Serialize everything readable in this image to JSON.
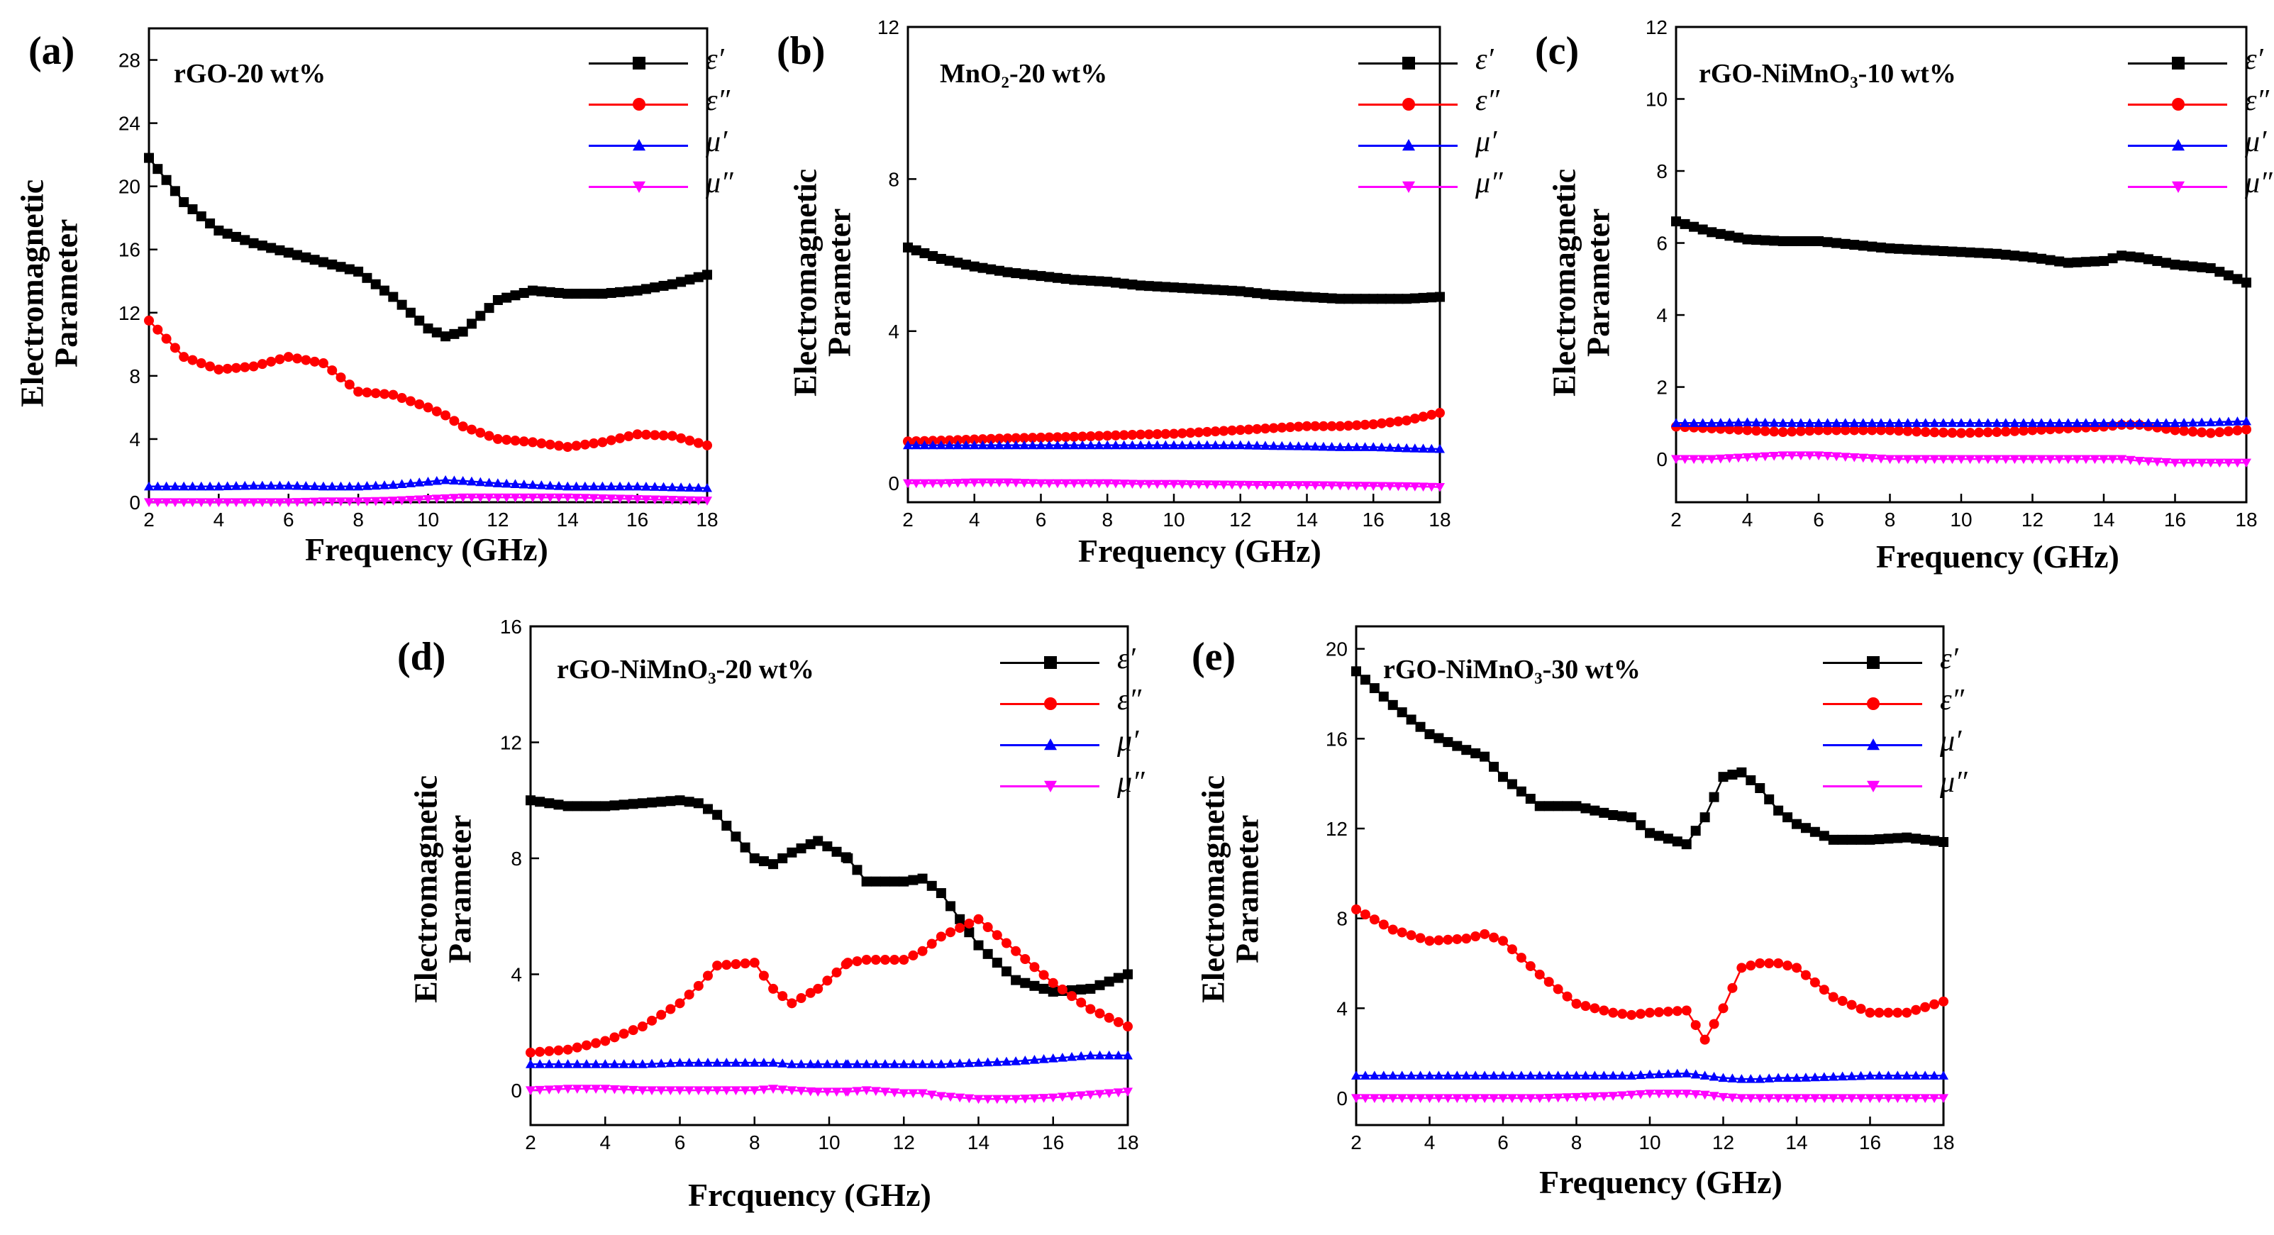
{
  "figure": {
    "x_axis_label": "Frequency (GHz)",
    "x_axis_label_d": "Frcquency (GHz)",
    "y_axis_label_line1": "Electromagnetic",
    "y_axis_label_line2": "Parameter"
  },
  "legend_labels": [
    "ε′",
    "ε″",
    "μ′",
    "μ″"
  ],
  "series_colors": {
    "eps_real": "#000000",
    "eps_imag": "#ff0000",
    "mu_real": "#0000ff",
    "mu_imag": "#ff00ff"
  },
  "panels": [
    {
      "label": "(a)",
      "title": "rGO-20 wt%"
    },
    {
      "label": "(b)",
      "title": "MnO₂-20 wt%"
    },
    {
      "label": "(c)",
      "title": "rGO-NiMnO₃-10 wt%"
    },
    {
      "label": "(d)",
      "title": "rGO-NiMnO₃-20 wt%"
    },
    {
      "label": "(e)",
      "title": "rGO-NiMnO₃-30 wt%"
    }
  ],
  "chart_data": [
    {
      "type": "scatter",
      "panel": "(a)",
      "title": "rGO-20 wt%",
      "xlabel": "Frequency (GHz)",
      "ylabel": "Electromagnetic Parameter",
      "xlim": [
        2,
        18
      ],
      "ylim": [
        0,
        30
      ],
      "x_ticks": [
        2,
        4,
        6,
        8,
        10,
        12,
        14,
        16,
        18
      ],
      "y_ticks": [
        0,
        4,
        8,
        12,
        16,
        20,
        24,
        28
      ],
      "x": [
        2,
        3,
        4,
        5,
        6,
        7,
        8,
        9,
        10,
        10.5,
        11,
        12,
        13,
        14,
        15,
        16,
        17,
        18
      ],
      "series": [
        {
          "name": "ε′",
          "values": [
            21.8,
            19,
            17.2,
            16.4,
            15.8,
            15.2,
            14.6,
            13,
            11,
            10.5,
            10.8,
            12.8,
            13.4,
            13.2,
            13.2,
            13.4,
            13.8,
            14.4
          ]
        },
        {
          "name": "ε″",
          "values": [
            11.5,
            9.2,
            8.4,
            8.6,
            9.2,
            8.8,
            7.0,
            6.8,
            6.0,
            5.5,
            4.8,
            4.0,
            3.8,
            3.5,
            3.8,
            4.3,
            4.2,
            3.6
          ]
        },
        {
          "name": "μ′",
          "values": [
            1.0,
            1.0,
            1.0,
            1.05,
            1.05,
            1.0,
            1.0,
            1.1,
            1.3,
            1.4,
            1.35,
            1.2,
            1.1,
            1.0,
            1.0,
            1.0,
            0.95,
            0.9
          ]
        },
        {
          "name": "μ″",
          "values": [
            0.0,
            0.0,
            0.0,
            0.0,
            0.0,
            0.05,
            0.05,
            0.1,
            0.2,
            0.25,
            0.3,
            0.3,
            0.3,
            0.3,
            0.25,
            0.2,
            0.15,
            0.1
          ]
        }
      ]
    },
    {
      "type": "scatter",
      "panel": "(b)",
      "title": "MnO₂-20 wt%",
      "xlabel": "Frequency (GHz)",
      "ylabel": "Electromagnetic Parameter",
      "xlim": [
        2,
        18
      ],
      "ylim": [
        -0.5,
        12
      ],
      "x_ticks": [
        2,
        4,
        6,
        8,
        10,
        12,
        14,
        16,
        18
      ],
      "y_ticks": [
        0,
        4,
        8,
        12
      ],
      "x": [
        2,
        3,
        4,
        5,
        6,
        7,
        8,
        9,
        10,
        11,
        12,
        13,
        14,
        15,
        16,
        17,
        18
      ],
      "series": [
        {
          "name": "ε′",
          "values": [
            6.2,
            5.9,
            5.7,
            5.55,
            5.45,
            5.35,
            5.3,
            5.2,
            5.15,
            5.1,
            5.05,
            4.95,
            4.9,
            4.85,
            4.85,
            4.85,
            4.9
          ]
        },
        {
          "name": "ε″",
          "values": [
            1.1,
            1.12,
            1.15,
            1.18,
            1.2,
            1.22,
            1.25,
            1.28,
            1.3,
            1.35,
            1.4,
            1.45,
            1.5,
            1.5,
            1.55,
            1.65,
            1.85
          ]
        },
        {
          "name": "μ′",
          "values": [
            1.0,
            1.0,
            1.0,
            1.0,
            1.0,
            1.0,
            1.0,
            1.0,
            1.0,
            1.0,
            1.0,
            0.98,
            0.97,
            0.95,
            0.95,
            0.92,
            0.9
          ]
        },
        {
          "name": "μ″",
          "values": [
            0.0,
            0.0,
            0.02,
            0.02,
            0.0,
            0.0,
            0.0,
            -0.02,
            -0.02,
            -0.03,
            -0.04,
            -0.05,
            -0.05,
            -0.06,
            -0.07,
            -0.08,
            -0.1
          ]
        }
      ]
    },
    {
      "type": "scatter",
      "panel": "(c)",
      "title": "rGO-NiMnO₃-10 wt%",
      "xlabel": "Frequency (GHz)",
      "ylabel": "Electromagnetic Parameter",
      "xlim": [
        2,
        18
      ],
      "ylim": [
        -1.2,
        12
      ],
      "x_ticks": [
        2,
        4,
        6,
        8,
        10,
        12,
        14,
        16,
        18
      ],
      "y_ticks": [
        0,
        2,
        4,
        6,
        8,
        10,
        12
      ],
      "x": [
        2,
        3,
        4,
        5,
        6,
        7,
        8,
        9,
        10,
        11,
        12,
        13,
        14,
        14.5,
        15,
        16,
        17,
        18
      ],
      "series": [
        {
          "name": "ε′",
          "values": [
            6.6,
            6.3,
            6.1,
            6.05,
            6.05,
            5.95,
            5.85,
            5.8,
            5.75,
            5.7,
            5.6,
            5.45,
            5.5,
            5.65,
            5.6,
            5.4,
            5.3,
            4.9
          ]
        },
        {
          "name": "ε″",
          "values": [
            0.9,
            0.85,
            0.8,
            0.75,
            0.8,
            0.8,
            0.8,
            0.75,
            0.72,
            0.75,
            0.8,
            0.85,
            0.9,
            0.95,
            0.95,
            0.8,
            0.72,
            0.82
          ]
        },
        {
          "name": "μ′",
          "values": [
            1.0,
            1.0,
            1.02,
            1.0,
            1.0,
            1.0,
            1.0,
            1.0,
            1.0,
            1.0,
            1.0,
            1.0,
            1.0,
            1.0,
            1.0,
            1.0,
            1.02,
            1.05
          ]
        },
        {
          "name": "μ″",
          "values": [
            0.0,
            0.0,
            0.05,
            0.1,
            0.1,
            0.05,
            0.0,
            0.0,
            0.0,
            0.0,
            0.0,
            0.0,
            0.0,
            0.0,
            -0.05,
            -0.1,
            -0.1,
            -0.1
          ]
        }
      ]
    },
    {
      "type": "scatter",
      "panel": "(d)",
      "title": "rGO-NiMnO₃-20 wt%",
      "xlabel": "Frcquency (GHz)",
      "ylabel": "Electromagnetic Parameter",
      "xlim": [
        2,
        18
      ],
      "ylim": [
        -1.2,
        16
      ],
      "x_ticks": [
        2,
        4,
        6,
        8,
        10,
        12,
        14,
        16,
        18
      ],
      "y_ticks": [
        0,
        4,
        8,
        12,
        16
      ],
      "x": [
        2,
        3,
        4,
        5,
        6,
        6.5,
        7,
        8,
        8.5,
        9,
        9.7,
        10.5,
        11,
        12,
        12.5,
        13,
        14,
        15,
        16,
        17,
        18
      ],
      "series": [
        {
          "name": "ε′",
          "values": [
            10.0,
            9.8,
            9.8,
            9.9,
            10.0,
            9.9,
            9.5,
            8.0,
            7.8,
            8.2,
            8.6,
            8.0,
            7.2,
            7.2,
            7.3,
            6.8,
            5.0,
            3.8,
            3.4,
            3.5,
            4.0
          ]
        },
        {
          "name": "ε″",
          "values": [
            1.3,
            1.4,
            1.7,
            2.2,
            3.0,
            3.6,
            4.3,
            4.4,
            3.5,
            3.0,
            3.5,
            4.4,
            4.5,
            4.5,
            4.8,
            5.3,
            5.9,
            4.8,
            3.7,
            2.8,
            2.2
          ]
        },
        {
          "name": "μ′",
          "values": [
            0.9,
            0.9,
            0.9,
            0.9,
            0.95,
            0.95,
            0.95,
            0.95,
            0.95,
            0.9,
            0.9,
            0.9,
            0.9,
            0.9,
            0.9,
            0.9,
            0.95,
            1.0,
            1.1,
            1.2,
            1.2
          ]
        },
        {
          "name": "μ″",
          "values": [
            0.0,
            0.05,
            0.05,
            0.0,
            0.0,
            0.0,
            0.0,
            0.0,
            0.05,
            0.0,
            -0.05,
            -0.05,
            0.0,
            -0.1,
            -0.1,
            -0.2,
            -0.3,
            -0.3,
            -0.25,
            -0.15,
            -0.05
          ]
        }
      ]
    },
    {
      "type": "scatter",
      "panel": "(e)",
      "title": "rGO-NiMnO₃-30 wt%",
      "xlabel": "Frequency (GHz)",
      "ylabel": "Electromagnetic Parameter",
      "xlim": [
        2,
        18
      ],
      "ylim": [
        -1.2,
        21
      ],
      "x_ticks": [
        2,
        4,
        6,
        8,
        10,
        12,
        14,
        16,
        18
      ],
      "y_ticks": [
        0,
        4,
        8,
        12,
        16,
        20
      ],
      "x": [
        2,
        3,
        4,
        5,
        5.5,
        6,
        7,
        8,
        9,
        9.5,
        10,
        11,
        11.5,
        12,
        12.5,
        13,
        13.5,
        14,
        15,
        16,
        17,
        18
      ],
      "series": [
        {
          "name": "ε′",
          "values": [
            19.0,
            17.5,
            16.2,
            15.5,
            15.2,
            14.3,
            13.0,
            13.0,
            12.6,
            12.5,
            11.8,
            11.3,
            12.5,
            14.3,
            14.5,
            13.8,
            12.8,
            12.2,
            11.5,
            11.5,
            11.6,
            11.4
          ]
        },
        {
          "name": "ε″",
          "values": [
            8.4,
            7.5,
            7.0,
            7.1,
            7.3,
            7.0,
            5.5,
            4.2,
            3.8,
            3.7,
            3.8,
            3.9,
            2.6,
            4.0,
            5.8,
            6.0,
            6.0,
            5.8,
            4.5,
            3.8,
            3.8,
            4.3
          ]
        },
        {
          "name": "μ′",
          "values": [
            1.0,
            1.0,
            1.0,
            1.0,
            1.0,
            1.0,
            1.0,
            1.0,
            1.0,
            1.0,
            1.05,
            1.1,
            1.0,
            0.9,
            0.85,
            0.85,
            0.9,
            0.9,
            0.95,
            1.0,
            1.0,
            1.0
          ]
        },
        {
          "name": "μ″",
          "values": [
            0.0,
            0.0,
            0.0,
            0.0,
            0.0,
            0.0,
            0.0,
            0.05,
            0.1,
            0.15,
            0.2,
            0.2,
            0.15,
            0.05,
            0.0,
            0.0,
            0.0,
            0.0,
            0.0,
            0.0,
            0.0,
            0.0
          ]
        }
      ]
    }
  ]
}
